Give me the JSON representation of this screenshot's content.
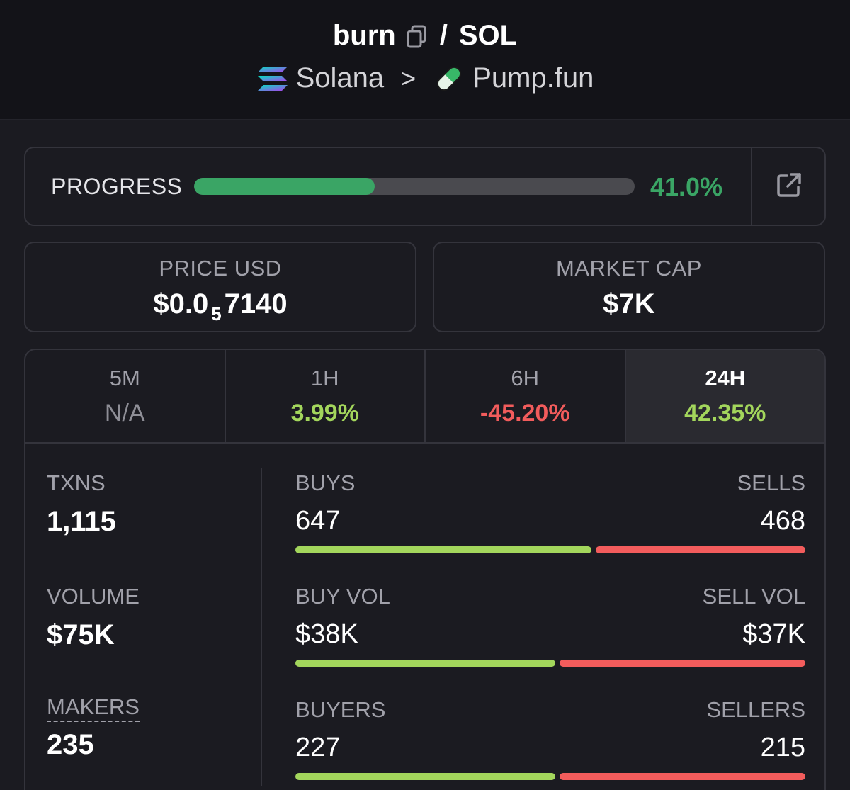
{
  "header": {
    "token": "burn",
    "quote": "SOL",
    "separator": "/",
    "chain": "Solana",
    "chevron": ">",
    "dex": "Pump.fun",
    "chain_icon": "solana-logo-icon",
    "dex_icon": "pill-icon",
    "copy_icon": "copy-icon"
  },
  "progress": {
    "label": "PROGRESS",
    "value_text": "41.0%",
    "fraction": 0.41,
    "color": "#3aa565",
    "open_icon": "external-link-icon"
  },
  "price": {
    "label": "PRICE USD",
    "prefix": "$0.0",
    "zeros": "5",
    "digits": "7140"
  },
  "market_cap": {
    "label": "MARKET CAP",
    "value": "$7K"
  },
  "tabs": [
    {
      "label": "5M",
      "value": "N/A",
      "tone": "na"
    },
    {
      "label": "1H",
      "value": "3.99%",
      "tone": "pos"
    },
    {
      "label": "6H",
      "value": "-45.20%",
      "tone": "neg"
    },
    {
      "label": "24H",
      "value": "42.35%",
      "tone": "pos",
      "active": true
    }
  ],
  "left_metrics": {
    "txns_label": "TXNS",
    "txns_value": "1,115",
    "volume_label": "VOLUME",
    "volume_value": "$75K",
    "makers_label": "MAKERS",
    "makers_value": "235"
  },
  "bars": [
    {
      "left_label": "BUYS",
      "right_label": "SELLS",
      "left_value": "647",
      "right_value": "468",
      "buy_fraction": 0.58
    },
    {
      "left_label": "BUY VOL",
      "right_label": "SELL VOL",
      "left_value": "$38K",
      "right_value": "$37K",
      "buy_fraction": 0.51
    },
    {
      "left_label": "BUYERS",
      "right_label": "SELLERS",
      "left_value": "227",
      "right_value": "215",
      "buy_fraction": 0.51
    }
  ],
  "colors": {
    "positive": "#a3d65c",
    "negative": "#f25c5c",
    "progress": "#3aa565",
    "background": "#1b1b21"
  }
}
